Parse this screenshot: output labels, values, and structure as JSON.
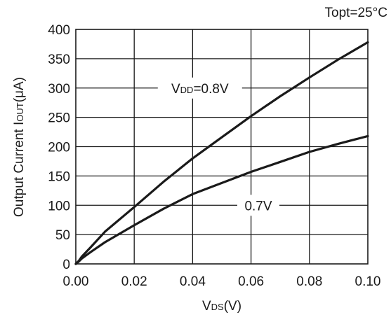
{
  "chart_data": {
    "type": "line",
    "title": "",
    "condition": "Topt=25°C",
    "xlabel": {
      "main": "V",
      "sub": "DS",
      "unit": "(V)"
    },
    "ylabel": {
      "main": "Output Current I",
      "sub": "OUT",
      "unit": "(μA)"
    },
    "xlim": [
      0,
      0.1
    ],
    "ylim": [
      0,
      400
    ],
    "xticks": [
      0.0,
      0.02,
      0.04,
      0.06,
      0.08,
      0.1
    ],
    "xtick_labels": [
      "0.00",
      "0.02",
      "0.04",
      "0.06",
      "0.08",
      "0.10"
    ],
    "yticks": [
      0,
      50,
      100,
      150,
      200,
      250,
      300,
      350,
      400
    ],
    "ytick_labels": [
      "0",
      "50",
      "100",
      "150",
      "200",
      "250",
      "300",
      "350",
      "400"
    ],
    "grid": true,
    "series": [
      {
        "name": "VDD=0.8V",
        "label_main": "V",
        "label_sub": "DD",
        "label_value": "=0.8V",
        "x": [
          0.0,
          0.001,
          0.002,
          0.005,
          0.01,
          0.02,
          0.03,
          0.04,
          0.05,
          0.06,
          0.07,
          0.08,
          0.09,
          0.1
        ],
        "y": [
          0,
          5,
          12,
          28,
          55,
          97,
          140,
          180,
          216,
          252,
          286,
          318,
          349,
          378
        ]
      },
      {
        "name": "0.7V",
        "label": "0.7V",
        "x": [
          0.0,
          0.001,
          0.002,
          0.005,
          0.01,
          0.02,
          0.03,
          0.04,
          0.05,
          0.06,
          0.07,
          0.08,
          0.09,
          0.1
        ],
        "y": [
          0,
          4,
          9,
          20,
          37,
          66,
          94,
          119,
          138,
          157,
          174,
          191,
          205,
          218
        ]
      }
    ]
  }
}
